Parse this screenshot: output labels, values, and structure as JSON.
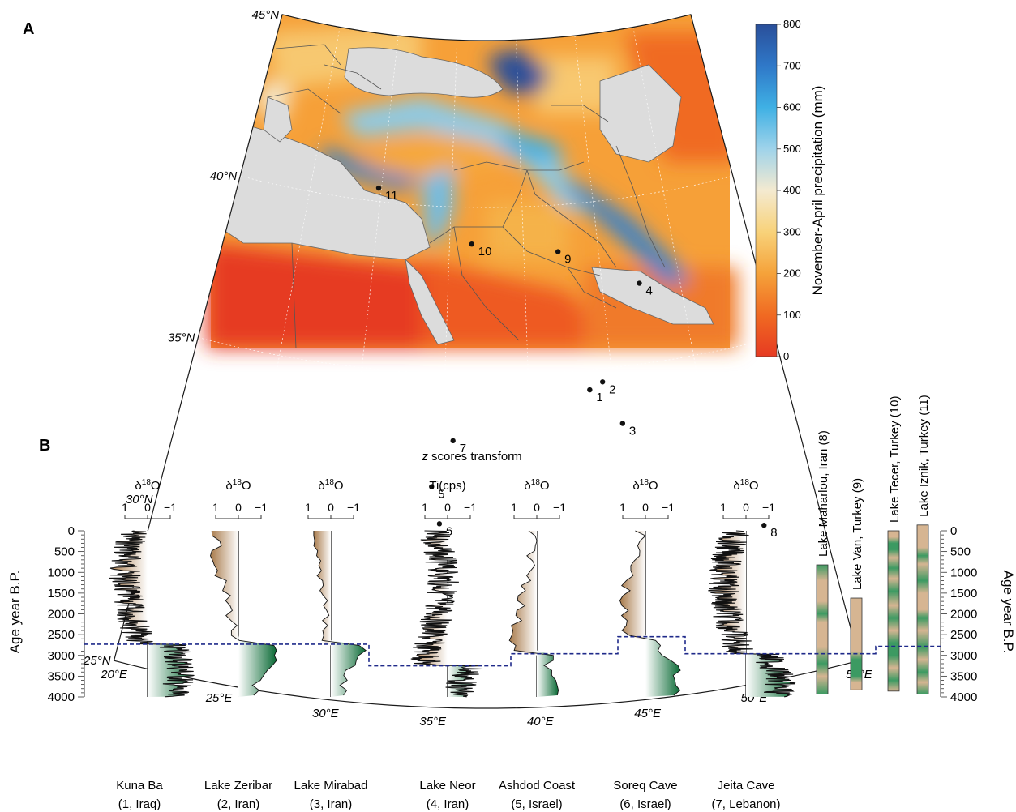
{
  "panel_a": {
    "letter": "A",
    "lat_labels": [
      "45°N",
      "40°N",
      "35°N",
      "30°N",
      "25°N"
    ],
    "lon_labels": [
      "20°E",
      "25°E",
      "30°E",
      "35°E",
      "40°E",
      "45°E",
      "50°E",
      "55°E"
    ],
    "sites": [
      {
        "num": "1",
        "lon": 43.6,
        "lat": 34.4
      },
      {
        "num": "2",
        "lon": 44.4,
        "lat": 34.6
      },
      {
        "num": "3",
        "lon": 45.3,
        "lat": 33.3
      },
      {
        "num": "4",
        "lon": 47.4,
        "lat": 37.4
      },
      {
        "num": "5",
        "lon": 34.5,
        "lat": 31.6
      },
      {
        "num": "6",
        "lon": 35.0,
        "lat": 30.5
      },
      {
        "num": "7",
        "lon": 35.6,
        "lat": 33.0
      },
      {
        "num": "8",
        "lon": 52.0,
        "lat": 29.6
      },
      {
        "num": "9",
        "lon": 42.3,
        "lat": 38.6
      },
      {
        "num": "10",
        "lon": 36.5,
        "lat": 38.9
      },
      {
        "num": "11",
        "lon": 29.8,
        "lat": 40.4
      }
    ],
    "colorbar": {
      "label": "November-April precipitation (mm)",
      "ticks": [
        "0",
        "100",
        "200",
        "300",
        "400",
        "500",
        "600",
        "700",
        "800"
      ],
      "colors": [
        "#e63a22",
        "#f06a22",
        "#f5a23a",
        "#f8d27a",
        "#f4ead0",
        "#9fd3ea",
        "#3fb0e4",
        "#2f78c8",
        "#2a4f9a"
      ]
    },
    "colors": {
      "land_gray": "#dcdcdc",
      "border": "#555555"
    }
  },
  "panel_b": {
    "letter": "B",
    "z_label_italic": "z",
    "z_label_rest": " scores transform",
    "left_axis_title": "Age year B.P.",
    "right_axis_title": "Age year B.P.",
    "age_ticks": [
      "0",
      "500",
      "1000",
      "1500",
      "2000",
      "2500",
      "3000",
      "3500",
      "4000"
    ],
    "proxy_delta": "δ",
    "proxy_sup": "18",
    "proxy_o": "O",
    "proxy_ti": "Ti(cps)",
    "z_ticks": [
      "1",
      "0",
      "−1"
    ],
    "records": [
      {
        "name": "Kuna Ba",
        "loc": "(1, Iraq)",
        "proxy": "d18O",
        "transition_age": 2730,
        "noise": true
      },
      {
        "name": "Lake Zeribar",
        "loc": "(2, Iran)",
        "proxy": "d18O",
        "transition_age": 2730,
        "noise": false
      },
      {
        "name": "Lake Mirabad",
        "loc": "(3, Iran)",
        "proxy": "d18O",
        "transition_age": 2730,
        "noise": false
      },
      {
        "name": "Lake Neor",
        "loc": "(4, Iran)",
        "proxy": "Ti",
        "transition_age": 3250,
        "noise": true
      },
      {
        "name": "Ashdod Coast",
        "loc": "(5, Israel)",
        "proxy": "d18O",
        "transition_age": 2960,
        "noise": false
      },
      {
        "name": "Soreq Cave",
        "loc": "(6, Israel)",
        "proxy": "d18O",
        "transition_age": 2550,
        "noise": false
      },
      {
        "name": "Jeita Cave",
        "loc": "(7, Lebanon)",
        "proxy": "d18O",
        "transition_age": 2960,
        "noise": true
      }
    ],
    "bars": [
      {
        "label": "Lake Maharlou, Iran (8)",
        "top_age": 820,
        "bottom_age": 3930
      },
      {
        "label": "Lake Van, Turkey (9)",
        "top_age": 1620,
        "bottom_age": 3830
      },
      {
        "label": "Lake Tecer, Turkey (10)",
        "top_age": 0,
        "bottom_age": 3860
      },
      {
        "label": "Lake Iznik, Turkey (11)",
        "top_age": -140,
        "bottom_age": 3930
      }
    ],
    "tecer_transition_age": 2960,
    "iznik_transition_age": 2780,
    "colors": {
      "wet": "#0a6a35",
      "dry": "#a87a4a",
      "bar_wet": "#3c9a62",
      "bar_dry": "#d6b592",
      "dashed": "#1f2a8a"
    }
  }
}
